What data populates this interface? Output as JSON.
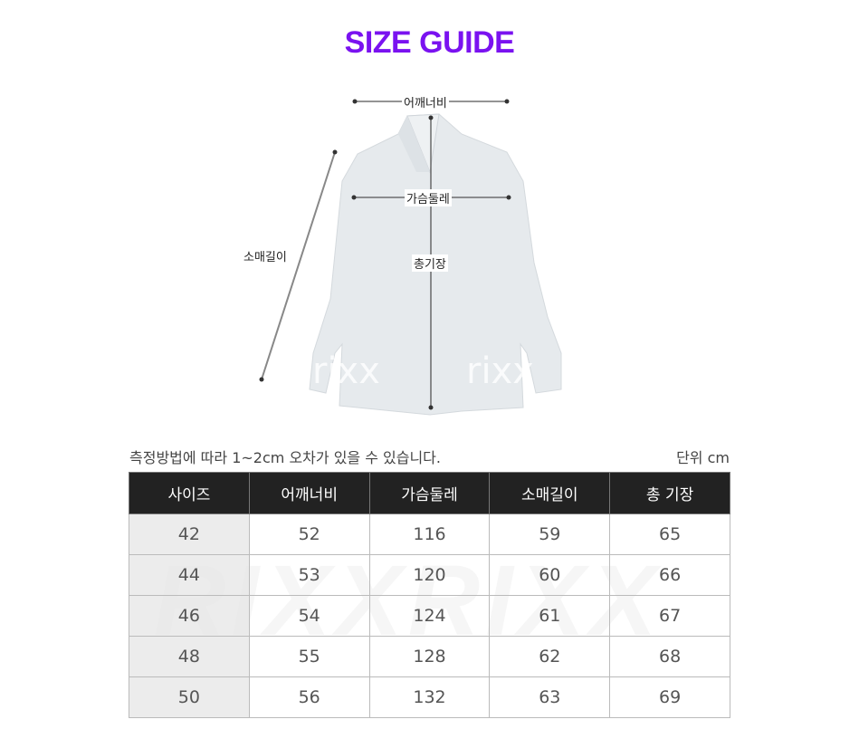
{
  "title": "SIZE GUIDE",
  "figure": {
    "shoulder": "어깨너비",
    "chest": "가슴둘레",
    "sleeve": "소매길이",
    "length": "총기장",
    "watermark": "rixx"
  },
  "note": "측정방법에 따라 1~2cm 오차가 있을 수 있습니다.",
  "unit": "단위 cm",
  "table": {
    "headers": [
      "사이즈",
      "어깨너비",
      "가슴둘레",
      "소매길이",
      "총 기장"
    ],
    "rows": [
      [
        "42",
        "52",
        "116",
        "59",
        "65"
      ],
      [
        "44",
        "53",
        "120",
        "60",
        "66"
      ],
      [
        "46",
        "54",
        "124",
        "61",
        "67"
      ],
      [
        "48",
        "55",
        "128",
        "62",
        "68"
      ],
      [
        "50",
        "56",
        "132",
        "63",
        "69"
      ]
    ],
    "watermark": "RIXXRIXX"
  },
  "colors": {
    "title": "#7a12f0",
    "header_bg": "#222222"
  }
}
